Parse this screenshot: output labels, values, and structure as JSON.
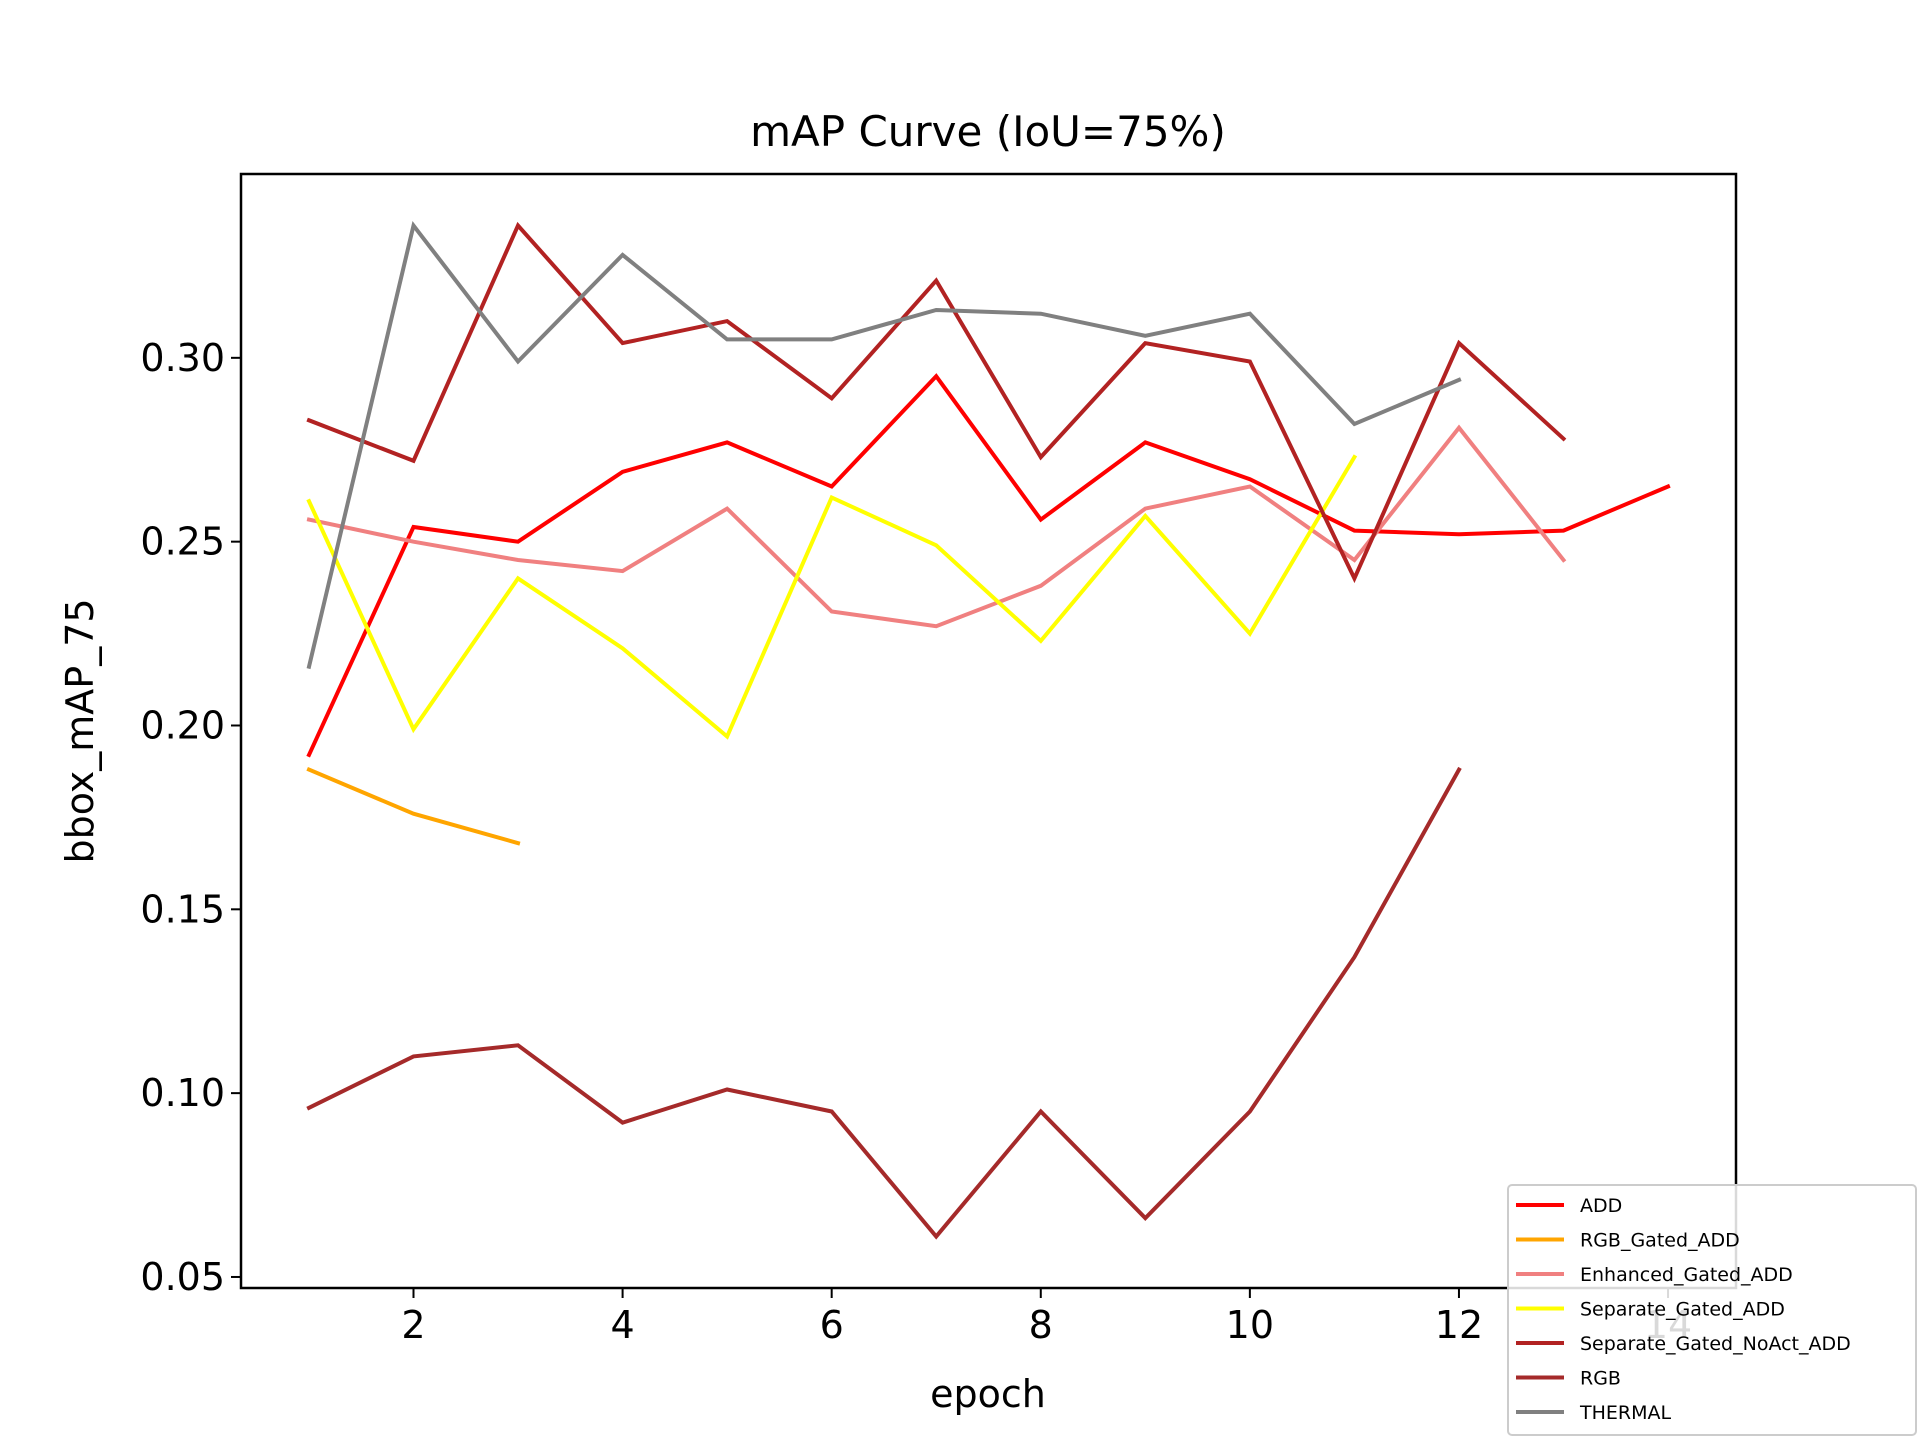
{
  "chart_data": {
    "type": "line",
    "title": "mAP Curve (IoU=75%)",
    "xlabel": "epoch",
    "ylabel": "bbox_mAP_75",
    "xlim": [
      0.35,
      14.65
    ],
    "ylim": [
      0.047,
      0.35
    ],
    "xticks": [
      2,
      4,
      6,
      8,
      10,
      12,
      14
    ],
    "yticks": [
      0.05,
      0.1,
      0.15,
      0.2,
      0.25,
      0.3
    ],
    "ytick_labels": [
      "0.05",
      "0.10",
      "0.15",
      "0.20",
      "0.25",
      "0.30"
    ],
    "legend_position": "bottom-right",
    "grid": false,
    "series": [
      {
        "name": "ADD",
        "color": "#ff0000",
        "x": [
          1,
          2,
          3,
          4,
          5,
          6,
          7,
          8,
          9,
          10,
          11,
          12,
          13,
          14
        ],
        "values": [
          0.192,
          0.254,
          0.25,
          0.269,
          0.277,
          0.265,
          0.295,
          0.256,
          0.277,
          0.267,
          0.253,
          0.252,
          0.253,
          0.265
        ]
      },
      {
        "name": "RGB_Gated_ADD",
        "color": "#ffa500",
        "x": [
          1,
          2,
          3
        ],
        "values": [
          0.188,
          0.176,
          0.168
        ]
      },
      {
        "name": "Enhanced_Gated_ADD",
        "color": "#f08080",
        "x": [
          1,
          2,
          3,
          4,
          5,
          6,
          7,
          8,
          9,
          10,
          11,
          12,
          13
        ],
        "values": [
          0.256,
          0.25,
          0.245,
          0.242,
          0.259,
          0.231,
          0.227,
          0.238,
          0.259,
          0.265,
          0.245,
          0.281,
          0.245
        ]
      },
      {
        "name": "Separate_Gated_ADD",
        "color": "#ffff00",
        "x": [
          1,
          2,
          3,
          4,
          5,
          6,
          7,
          8,
          9,
          10,
          11
        ],
        "values": [
          0.261,
          0.199,
          0.24,
          0.221,
          0.197,
          0.262,
          0.249,
          0.223,
          0.257,
          0.225,
          0.273
        ]
      },
      {
        "name": "Separate_Gated_NoAct_ADD",
        "color": "#b22222",
        "x": [
          1,
          2,
          3,
          4,
          5,
          6,
          7,
          8,
          9,
          10,
          11,
          12,
          13
        ],
        "values": [
          0.283,
          0.272,
          0.336,
          0.304,
          0.31,
          0.289,
          0.321,
          0.273,
          0.304,
          0.299,
          0.24,
          0.304,
          0.278
        ]
      },
      {
        "name": "RGB",
        "color": "#a52a2a",
        "x": [
          1,
          2,
          3,
          4,
          5,
          6,
          7,
          8,
          9,
          10,
          11,
          12
        ],
        "values": [
          0.096,
          0.11,
          0.113,
          0.092,
          0.101,
          0.095,
          0.061,
          0.095,
          0.066,
          0.095,
          0.137,
          0.188
        ]
      },
      {
        "name": "THERMAL",
        "color": "#808080",
        "x": [
          1,
          2,
          3,
          4,
          5,
          6,
          7,
          8,
          9,
          10,
          11,
          12
        ],
        "values": [
          0.216,
          0.336,
          0.299,
          0.328,
          0.305,
          0.305,
          0.313,
          0.312,
          0.306,
          0.312,
          0.282,
          0.294
        ]
      }
    ]
  }
}
